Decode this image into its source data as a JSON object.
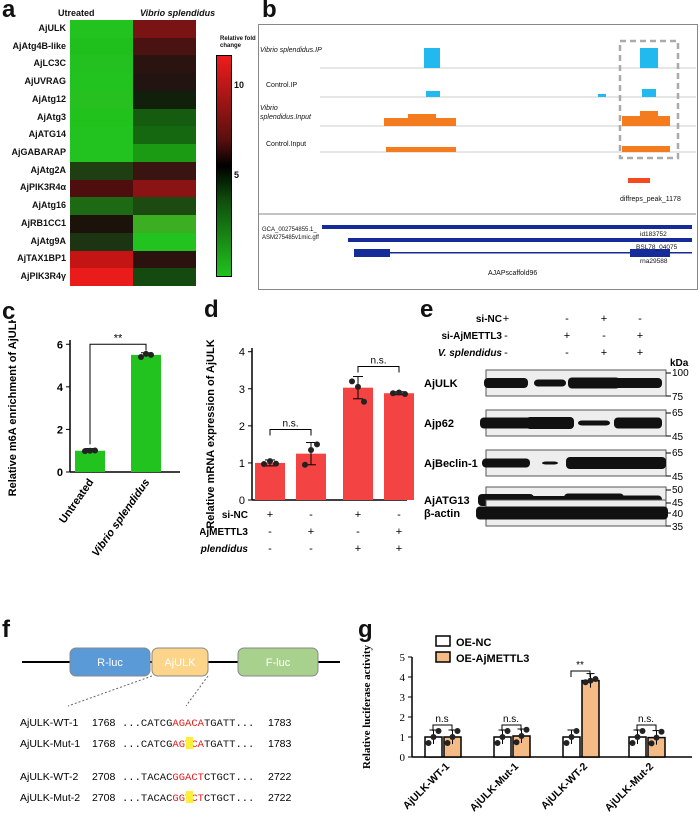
{
  "panels": {
    "a": "a",
    "b": "b",
    "c": "c",
    "d": "d",
    "e": "e",
    "f": "f",
    "g": "g"
  },
  "heatmap": {
    "col_labels": [
      "Utreated",
      "Vibrio splendidus"
    ],
    "rows": [
      "AjULK",
      "AjAtg4B-like",
      "AjLC3C",
      "AjUVRAG",
      "AjAtg12",
      "AjAtg3",
      "AjATG14",
      "AjGABARAP",
      "AjAtg2A",
      "AjPIK3R4α",
      "AjAtg16",
      "AjRB1CC1",
      "AjAtg9A",
      "AjTAX1BP1",
      "AjPIK3R4γ"
    ],
    "col1": [
      "#22c21f",
      "#1fbf1c",
      "#23c11f",
      "#22c31f",
      "#26c11f",
      "#22c21d",
      "#22c21f",
      "#22c21f",
      "#1f3e12",
      "#4f0e0e",
      "#1e6a14",
      "#1b1209",
      "#1c3411",
      "#c41414",
      "#ea1b1b"
    ],
    "col2": [
      "#7a1414",
      "#4a1210",
      "#2b1410",
      "#221410",
      "#10200b",
      "#165c10",
      "#166810",
      "#1b9a14",
      "#3a1410",
      "#8a1414",
      "#1d4a10",
      "#3cae22",
      "#22c21f",
      "#2c120e",
      "#144a10"
    ],
    "legend_title": "Relative fold change",
    "legend_ticks": [
      "10",
      "5"
    ],
    "colors": {
      "high": "#ee1c1c",
      "mid": "#000000",
      "low": "#22c21f"
    }
  },
  "igv": {
    "tracks": [
      "Vibrio splendidus.IP",
      "Control.IP",
      "Vibrio splendidus.Input",
      "Control.Input"
    ],
    "peak_label": "diffreps_peak_1178",
    "gff_label": "GCA_002754855.1_ ASM275485v1mic.gff",
    "feature_labels": [
      "id183752",
      "BSL78_04075",
      "rna29588"
    ],
    "scaffold_label": "AJAPscaffold96"
  },
  "chart_data": [
    {
      "panel": "c",
      "type": "bar",
      "categories": [
        "Untreated",
        "Vibrio splendidus"
      ],
      "values": [
        1.0,
        5.5
      ],
      "points": [
        [
          0.98,
          1.0,
          1.01
        ],
        [
          5.4,
          5.55,
          5.5
        ]
      ],
      "ylabel": "Relative  m6A enrichment of AjULK",
      "yticks": [
        0,
        2,
        4,
        6
      ],
      "ylim": [
        0,
        6.2
      ],
      "significance": "**",
      "color": "#22c21f"
    },
    {
      "panel": "d",
      "type": "bar",
      "categories": [
        "1",
        "2",
        "3",
        "4"
      ],
      "values": [
        1.0,
        1.25,
        3.03,
        2.88
      ],
      "errors": [
        0.08,
        0.3,
        0.3,
        0.04
      ],
      "points": [
        [
          0.97,
          1.05,
          0.98
        ],
        [
          0.95,
          1.35,
          1.5
        ],
        [
          3.2,
          3.05,
          2.65
        ],
        [
          2.88,
          2.9,
          2.86
        ]
      ],
      "ylabel": "Relative  mRNA expression of AjULK",
      "yticks": [
        0,
        1,
        2,
        3,
        4
      ],
      "ylim": [
        0,
        4.1
      ],
      "comparisons": [
        "n.s.",
        "n.s."
      ],
      "conditions": [
        {
          "name": "si-NC",
          "signs": [
            "+",
            "-",
            "+",
            "-"
          ]
        },
        {
          "name": "si-AjMETTL3",
          "signs": [
            "-",
            "+",
            "-",
            "+"
          ]
        },
        {
          "name": "V. splendidus",
          "signs": [
            "-",
            "-",
            "+",
            "+"
          ]
        }
      ],
      "color": "#f44343"
    },
    {
      "panel": "g",
      "type": "bar",
      "categories": [
        "AjULK-WT-1",
        "AjULK-Mut-1",
        "AjULK-WT-2",
        "AjULK-Mut-2"
      ],
      "series": [
        {
          "name": "OE-NC",
          "values": [
            1.0,
            1.0,
            1.0,
            1.0
          ]
        },
        {
          "name": "OE-AjMETTL3",
          "values": [
            1.0,
            1.05,
            3.82,
            0.97
          ]
        }
      ],
      "ylabel": "Relative luciferase activity",
      "yticks": [
        0,
        1,
        2,
        3,
        4,
        5
      ],
      "ylim": [
        0,
        5
      ],
      "comparisons": [
        "n.s",
        "n.s.",
        "**",
        "n.s."
      ],
      "colors": [
        "#ffffff",
        "#f4bb87"
      ]
    }
  ],
  "western": {
    "conditions": [
      {
        "name": "si-NC",
        "signs": [
          "+",
          "-",
          "+",
          "-"
        ]
      },
      {
        "name": "si-AjMETTL3",
        "signs": [
          "-",
          "+",
          "-",
          "+"
        ]
      },
      {
        "name": "V. splendidus",
        "signs": [
          "-",
          "-",
          "+",
          "+"
        ]
      }
    ],
    "kda": "kDa",
    "blots": [
      {
        "label": "AjULK",
        "markers": [
          "100",
          "75"
        ]
      },
      {
        "label": "Ajp62",
        "markers": [
          "65",
          "45"
        ]
      },
      {
        "label": "AjBeclin-1",
        "markers": [
          "65",
          "45"
        ]
      },
      {
        "label": "AjATG13",
        "markers": [
          "50",
          "40"
        ]
      },
      {
        "label": "β-actin",
        "markers": [
          "45",
          "35"
        ]
      }
    ]
  },
  "construct": {
    "boxes": [
      "R-luc",
      "AjULK",
      "F-luc"
    ],
    "sequences": [
      {
        "name": "AjULK-WT-1",
        "start": "1768",
        "pre": "...CATCG",
        "motif": "AGACA",
        "post": "TGATT...",
        "end": "1783"
      },
      {
        "name": "AjULK-Mut-1",
        "start": "1768",
        "pre": "...CATCG",
        "motif": "AGTCA",
        "post": "TGATT...",
        "end": "1783"
      },
      {
        "name": "AjULK-WT-2",
        "start": "2708",
        "pre": "...TACAC",
        "motif": "GGACT",
        "post": "CTGCT...",
        "end": "2722"
      },
      {
        "name": "AjULK-Mut-2",
        "start": "2708",
        "pre": "...TACAC",
        "motif": "GGTCT",
        "post": "CTGCT...",
        "end": "2722"
      }
    ]
  }
}
